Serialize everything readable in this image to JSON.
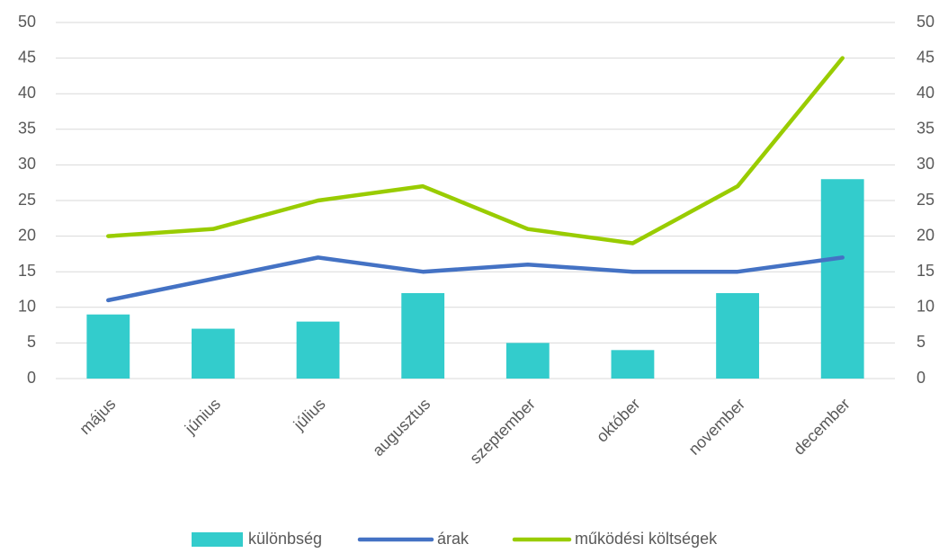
{
  "chart_data": {
    "type": "bar-line",
    "categories": [
      "május",
      "június",
      "július",
      "augusztus",
      "szeptember",
      "október",
      "november",
      "december"
    ],
    "series": [
      {
        "name": "különbség",
        "type": "bar",
        "color": "#33cccc",
        "values": [
          9,
          7,
          8,
          12,
          5,
          4,
          12,
          28
        ]
      },
      {
        "name": "árak",
        "type": "line",
        "axis": "y2",
        "color": "#4472c4",
        "values": [
          11,
          14,
          17,
          15,
          16,
          15,
          15,
          17
        ]
      },
      {
        "name": "működési költségek",
        "type": "line",
        "axis": "y2",
        "color": "#99cc00",
        "values": [
          20,
          21,
          25,
          27,
          21,
          19,
          27,
          45
        ]
      }
    ],
    "ylim": [
      0,
      50
    ],
    "yticks": [
      0,
      5,
      10,
      15,
      20,
      25,
      30,
      35,
      40,
      45,
      50
    ],
    "y2lim": [
      0,
      50
    ],
    "y2ticks": [
      0,
      5,
      10,
      15,
      20,
      25,
      30,
      35,
      40,
      45,
      50
    ],
    "grid": true,
    "legend": "bottom"
  }
}
